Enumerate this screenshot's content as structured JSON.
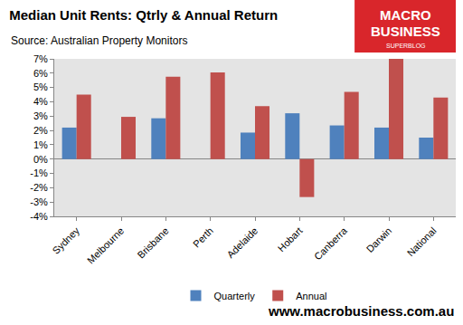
{
  "chart_data": {
    "type": "bar",
    "title": "Median Unit Rents: Qtrly & Annual Return",
    "subtitle": "Source: Australian Property Monitors",
    "logo_lines": [
      "MACRO",
      "BUSINESS",
      "SUPERBLOG"
    ],
    "footer": "www.macrobusiness.com.au",
    "categories": [
      "Sydney",
      "Melbourne",
      "Brisbane",
      "Perth",
      "Adelaide",
      "Hobart",
      "Canberra",
      "Darwin",
      "National"
    ],
    "series": [
      {
        "name": "Quarterly",
        "color": "#4f81bd",
        "values": [
          2.2,
          0,
          2.85,
          0,
          1.85,
          3.2,
          2.35,
          2.2,
          1.5
        ]
      },
      {
        "name": "Annual",
        "color": "#c0504d",
        "values": [
          4.5,
          2.95,
          5.75,
          6.05,
          3.7,
          -2.65,
          4.7,
          7.0,
          4.3
        ]
      }
    ],
    "ylim": [
      -4,
      7
    ],
    "yticks": [
      {
        "value": -4,
        "label": "-4%"
      },
      {
        "value": -3,
        "label": "-3%"
      },
      {
        "value": -2,
        "label": "-2%"
      },
      {
        "value": -1,
        "label": "-1%"
      },
      {
        "value": 0,
        "label": "0%"
      },
      {
        "value": 1,
        "label": "1%"
      },
      {
        "value": 2,
        "label": "2%"
      },
      {
        "value": 3,
        "label": "3%"
      },
      {
        "value": 4,
        "label": "4%"
      },
      {
        "value": 5,
        "label": "5%"
      },
      {
        "value": 6,
        "label": "6%"
      },
      {
        "value": 7,
        "label": "7%"
      }
    ],
    "grid": false,
    "legend": "bottom"
  }
}
